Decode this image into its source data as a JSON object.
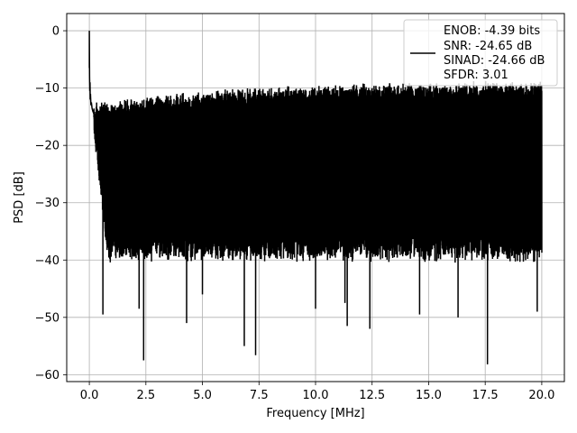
{
  "chart_data": {
    "type": "line",
    "title": "",
    "xlabel": "Frequency [MHz]",
    "ylabel": "PSD [dB]",
    "xlim": [
      -1.0,
      21.0
    ],
    "ylim": [
      -61.2,
      3.0
    ],
    "grid": true,
    "legend_placement": "top-right",
    "series": [
      {
        "color": "#000000",
        "description_points": {
          "x": [
            0.0,
            0.02,
            0.05,
            0.1,
            0.2,
            0.3,
            0.5,
            1.0,
            2.0,
            2.4,
            5.0,
            6.85,
            7.35,
            10.0,
            11.3,
            15.0,
            17.6,
            20.0
          ],
          "y": [
            0.0,
            -10.0,
            -12.0,
            -13.0,
            -14.0,
            -16.0,
            -20.0,
            -22.0,
            -22.0,
            -57.5,
            -22.0,
            -55.0,
            -56.6,
            -22.0,
            -22.0,
            -22.0,
            -58.2,
            -22.0
          ]
        },
        "upper_envelope": {
          "x": [
            0.5,
            5.0,
            10.0,
            15.0,
            20.0
          ],
          "y": [
            -13.5,
            -11.5,
            -10.5,
            -10.0,
            -10.0
          ]
        },
        "typical_lower": {
          "x": [
            0.5,
            5.0,
            10.0,
            15.0,
            20.0
          ],
          "y": [
            -38.0,
            -38.0,
            -38.0,
            -38.0,
            -38.0
          ]
        },
        "deep_dips": [
          {
            "x": 0.6,
            "y": -49.5
          },
          {
            "x": 2.2,
            "y": -48.5
          },
          {
            "x": 2.4,
            "y": -57.5
          },
          {
            "x": 4.3,
            "y": -51.0
          },
          {
            "x": 5.0,
            "y": -46.0
          },
          {
            "x": 6.85,
            "y": -55.0
          },
          {
            "x": 7.35,
            "y": -56.6
          },
          {
            "x": 10.0,
            "y": -48.5
          },
          {
            "x": 11.3,
            "y": -47.5
          },
          {
            "x": 11.4,
            "y": -51.5
          },
          {
            "x": 12.4,
            "y": -52.0
          },
          {
            "x": 14.6,
            "y": -49.5
          },
          {
            "x": 16.3,
            "y": -50.0
          },
          {
            "x": 17.6,
            "y": -58.2
          },
          {
            "x": 19.8,
            "y": -49.0
          }
        ]
      }
    ],
    "legend": {
      "lines": [
        "ENOB: -4.39 bits",
        "SNR: -24.65 dB",
        "SINAD: -24.66 dB",
        "SFDR: 3.01"
      ]
    },
    "x_ticks": [
      0.0,
      2.5,
      5.0,
      7.5,
      10.0,
      12.5,
      15.0,
      17.5,
      20.0
    ],
    "x_tick_labels": [
      "0.0",
      "2.5",
      "5.0",
      "7.5",
      "10.0",
      "12.5",
      "15.0",
      "17.5",
      "20.0"
    ],
    "y_ticks": [
      0,
      -10,
      -20,
      -30,
      -40,
      -50,
      -60
    ],
    "y_tick_labels": [
      "0",
      "−10",
      "−20",
      "−30",
      "−40",
      "−50",
      "−60"
    ]
  }
}
